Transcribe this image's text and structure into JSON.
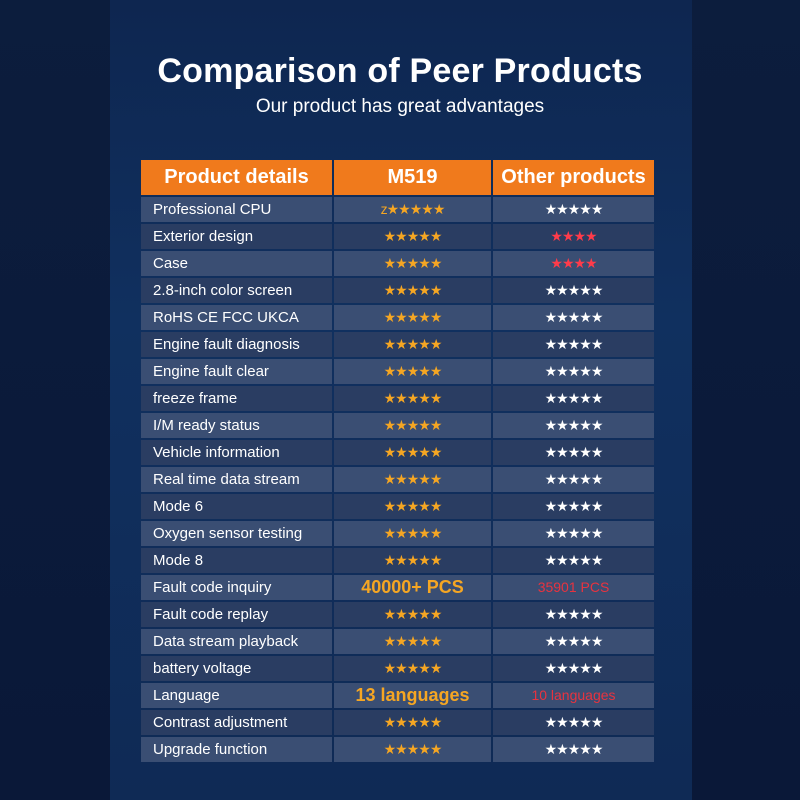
{
  "title": "Comparison of Peer Products",
  "subtitle": "Our product has great advantages",
  "colors": {
    "header": "#f07a1c",
    "star_orange": "#f5a623",
    "star_red": "#ff3b4a",
    "text_red": "#e8333f"
  },
  "table": {
    "headers": [
      "Product details",
      "M519",
      "Other products"
    ],
    "rows": [
      {
        "label": "Professional CPU",
        "m519": "z★★★★★",
        "m519_style": "stars-orange",
        "other": "★★★★★",
        "other_style": "stars-white"
      },
      {
        "label": "Exterior design",
        "m519": "★★★★★",
        "m519_style": "stars-orange",
        "other": "★★★★",
        "other_style": "stars-red"
      },
      {
        "label": "Case",
        "m519": "★★★★★",
        "m519_style": "stars-orange",
        "other": "★★★★",
        "other_style": "stars-red"
      },
      {
        "label": "2.8-inch color screen",
        "m519": "★★★★★",
        "m519_style": "stars-orange",
        "other": "★★★★★",
        "other_style": "stars-white"
      },
      {
        "label": "RoHS CE FCC UKCA",
        "m519": "★★★★★",
        "m519_style": "stars-orange",
        "other": "★★★★★",
        "other_style": "stars-white"
      },
      {
        "label": "Engine fault diagnosis",
        "m519": "★★★★★",
        "m519_style": "stars-orange",
        "other": "★★★★★",
        "other_style": "stars-white"
      },
      {
        "label": "Engine fault clear",
        "m519": "★★★★★",
        "m519_style": "stars-orange",
        "other": "★★★★★",
        "other_style": "stars-white"
      },
      {
        "label": "freeze frame",
        "m519": "★★★★★",
        "m519_style": "stars-orange",
        "other": "★★★★★",
        "other_style": "stars-white"
      },
      {
        "label": "I/M ready status",
        "m519": "★★★★★",
        "m519_style": "stars-orange",
        "other": "★★★★★",
        "other_style": "stars-white"
      },
      {
        "label": "Vehicle information",
        "m519": "★★★★★",
        "m519_style": "stars-orange",
        "other": "★★★★★",
        "other_style": "stars-white"
      },
      {
        "label": "Real time data stream",
        "m519": "★★★★★",
        "m519_style": "stars-orange",
        "other": "★★★★★",
        "other_style": "stars-white"
      },
      {
        "label": "Mode 6",
        "m519": "★★★★★",
        "m519_style": "stars-orange",
        "other": "★★★★★",
        "other_style": "stars-white"
      },
      {
        "label": "Oxygen sensor testing",
        "m519": "★★★★★",
        "m519_style": "stars-orange",
        "other": "★★★★★",
        "other_style": "stars-white"
      },
      {
        "label": "Mode 8",
        "m519": "★★★★★",
        "m519_style": "stars-orange",
        "other": "★★★★★",
        "other_style": "stars-white"
      },
      {
        "label": "Fault code inquiry",
        "m519": "40000+ PCS",
        "m519_style": "big-orange",
        "other": "35901 PCS",
        "other_style": "small-red"
      },
      {
        "label": "Fault code replay",
        "m519": "★★★★★",
        "m519_style": "stars-orange",
        "other": "★★★★★",
        "other_style": "stars-white"
      },
      {
        "label": "Data stream playback",
        "m519": "★★★★★",
        "m519_style": "stars-orange",
        "other": "★★★★★",
        "other_style": "stars-white"
      },
      {
        "label": "battery voltage",
        "m519": "★★★★★",
        "m519_style": "stars-orange",
        "other": "★★★★★",
        "other_style": "stars-white"
      },
      {
        "label": "Language",
        "m519": "13 languages",
        "m519_style": "big-orange",
        "other": "10 languages",
        "other_style": "small-red"
      },
      {
        "label": "Contrast adjustment",
        "m519": "★★★★★",
        "m519_style": "stars-orange",
        "other": "★★★★★",
        "other_style": "stars-white"
      },
      {
        "label": "Upgrade function",
        "m519": "★★★★★",
        "m519_style": "stars-orange",
        "other": "★★★★★",
        "other_style": "stars-white"
      }
    ]
  }
}
